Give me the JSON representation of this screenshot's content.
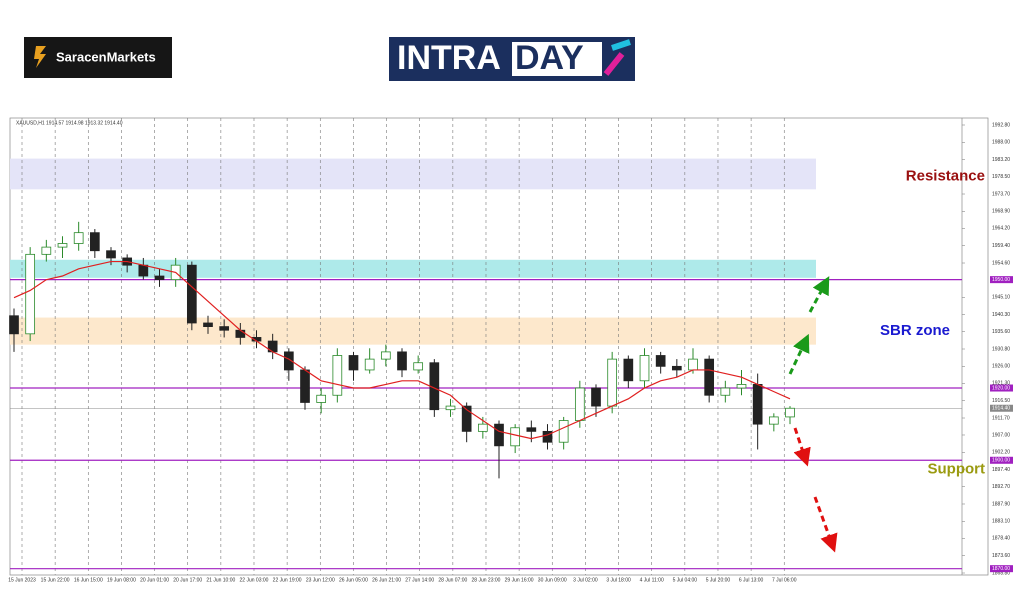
{
  "header": {
    "broker": "SaracenMarkets",
    "intra": "INTRA",
    "day": "DAY"
  },
  "chart_data": {
    "type": "candlestick",
    "title": "XAUUSD,H1 1914.57 1914.98 1913.32 1914.40",
    "open": [
      1940,
      1935,
      1957,
      1959,
      1960,
      1963,
      1958,
      1956,
      1954,
      1951,
      1950,
      1954,
      1938,
      1937,
      1936,
      1934,
      1933,
      1930,
      1925,
      1916,
      1918,
      1929,
      1925,
      1928,
      1930,
      1925,
      1927,
      1914,
      1915,
      1908,
      1910,
      1904,
      1909,
      1908,
      1905,
      1911,
      1920,
      1915,
      1928,
      1922,
      1929,
      1926,
      1925,
      1928,
      1918,
      1920,
      1921,
      1910,
      1912
    ],
    "high": [
      1942,
      1959,
      1961,
      1962,
      1966,
      1964,
      1959,
      1957,
      1956,
      1953,
      1956,
      1955,
      1940,
      1939,
      1938,
      1936,
      1935,
      1931,
      1926,
      1920,
      1931,
      1930,
      1931,
      1932,
      1931,
      1929,
      1928,
      1917,
      1916,
      1912,
      1911,
      1910,
      1911,
      1910,
      1912,
      1922,
      1921,
      1930,
      1929,
      1931,
      1930,
      1928,
      1931,
      1929,
      1922,
      1925,
      1924,
      1913,
      1915
    ],
    "low": [
      1930,
      1933,
      1955,
      1956,
      1958,
      1956,
      1954,
      1952,
      1950,
      1948,
      1948,
      1936,
      1935,
      1934,
      1932,
      1931,
      1928,
      1922,
      1914,
      1913,
      1916,
      1922,
      1924,
      1926,
      1923,
      1924,
      1912,
      1912,
      1905,
      1906,
      1895,
      1902,
      1905,
      1903,
      1903,
      1909,
      1912,
      1913,
      1920,
      1920,
      1924,
      1923,
      1924,
      1916,
      1916,
      1918,
      1903,
      1908,
      1910
    ],
    "close": [
      1935,
      1957,
      1959,
      1960,
      1963,
      1958,
      1956,
      1954,
      1951,
      1950,
      1954,
      1938,
      1937,
      1936,
      1934,
      1933,
      1930,
      1925,
      1916,
      1918,
      1929,
      1925,
      1928,
      1930,
      1925,
      1927,
      1914,
      1915,
      1908,
      1910,
      1904,
      1909,
      1908,
      1905,
      1911,
      1920,
      1915,
      1928,
      1922,
      1929,
      1926,
      1925,
      1928,
      1918,
      1920,
      1921,
      1910,
      1912,
      1914.4
    ],
    "ma": {
      "color": "#e02020",
      "values": [
        1945,
        1947,
        1950,
        1951,
        1953,
        1954,
        1955,
        1955,
        1954,
        1953,
        1952,
        1948,
        1944,
        1940,
        1936,
        1933,
        1930,
        1928,
        1925,
        1922,
        1921,
        1920,
        1920,
        1921,
        1922,
        1922,
        1920,
        1918,
        1914,
        1911,
        1908,
        1907,
        1906,
        1907,
        1909,
        1911,
        1913,
        1915,
        1917,
        1920,
        1922,
        1923,
        1925,
        1925,
        1924,
        1923,
        1921,
        1919,
        1917
      ]
    },
    "xticks": [
      "15 Jun 2023",
      "15 Jun 22:00",
      "16 Jun 15:00",
      "19 Jun 08:00",
      "20 Jun 01:00",
      "20 Jun 17:00",
      "21 Jun 10:00",
      "22 Jun 03:00",
      "22 Jun 19:00",
      "23 Jun 12:00",
      "26 Jun 05:00",
      "26 Jun 21:00",
      "27 Jun 14:00",
      "28 Jun 07:00",
      "28 Jun 23:00",
      "29 Jun 16:00",
      "30 Jun 09:00",
      "3 Jul 02:00",
      "3 Jul 18:00",
      "4 Jul 11:00",
      "5 Jul 04:00",
      "5 Jul 20:00",
      "6 Jul 13:00",
      "7 Jul 06:00"
    ],
    "ylim": [
      1868.8,
      1992.8
    ],
    "yticks": [
      {
        "value": 1992.8,
        "label": "1992.80"
      },
      {
        "value": 1988,
        "label": "1988.00"
      },
      {
        "value": 1983.2,
        "label": "1983.20"
      },
      {
        "value": 1978.5,
        "label": "1978.50"
      },
      {
        "value": 1973.7,
        "label": "1973.70"
      },
      {
        "value": 1968.9,
        "label": "1968.90"
      },
      {
        "value": 1964.2,
        "label": "1964.20"
      },
      {
        "value": 1959.4,
        "label": "1959.40"
      },
      {
        "value": 1954.6,
        "label": "1954.60"
      },
      {
        "value": 1945.1,
        "label": "1945.10"
      },
      {
        "value": 1940.3,
        "label": "1940.30"
      },
      {
        "value": 1935.6,
        "label": "1935.60"
      },
      {
        "value": 1930.8,
        "label": "1930.80"
      },
      {
        "value": 1926,
        "label": "1926.00"
      },
      {
        "value": 1921.3,
        "label": "1921.30"
      },
      {
        "value": 1916.5,
        "label": "1916.50"
      },
      {
        "value": 1911.7,
        "label": "1911.70"
      },
      {
        "value": 1907,
        "label": "1907.00"
      },
      {
        "value": 1902.2,
        "label": "1902.20"
      },
      {
        "value": 1897.4,
        "label": "1897.40"
      },
      {
        "value": 1892.7,
        "label": "1892.70"
      },
      {
        "value": 1887.9,
        "label": "1887.90"
      },
      {
        "value": 1883.1,
        "label": "1883.10"
      },
      {
        "value": 1878.4,
        "label": "1878.40"
      },
      {
        "value": 1873.6,
        "label": "1873.60"
      },
      {
        "value": 1868.8,
        "label": "1868.80"
      }
    ],
    "levels": [
      {
        "value": 1950,
        "label": "1950.00",
        "color": "#a020c0"
      },
      {
        "value": 1920,
        "label": "1920.00",
        "color": "#a020c0"
      },
      {
        "value": 1914.4,
        "label": "1914.40",
        "color": "#888888"
      },
      {
        "value": 1900,
        "label": "1900.00",
        "color": "#a020c0"
      },
      {
        "value": 1870,
        "label": "1870.00",
        "color": "#a020c0"
      }
    ],
    "zones": [
      {
        "from": 1975,
        "to": 1983.5,
        "color": "#e4e4f8",
        "label": null
      },
      {
        "from": 1950.5,
        "to": 1955.5,
        "color": "#aeeaea",
        "label": null
      },
      {
        "from": 1932,
        "to": 1939.5,
        "color": "#fde8cc",
        "label": "SBR zone",
        "label_color": "#1a1ad0"
      }
    ],
    "annotations": [
      {
        "text": "Resistance",
        "price": 1978.5,
        "color": "#9a1010"
      },
      {
        "text": "Support",
        "price": 1897.4,
        "color": "#9a9a10"
      }
    ]
  }
}
